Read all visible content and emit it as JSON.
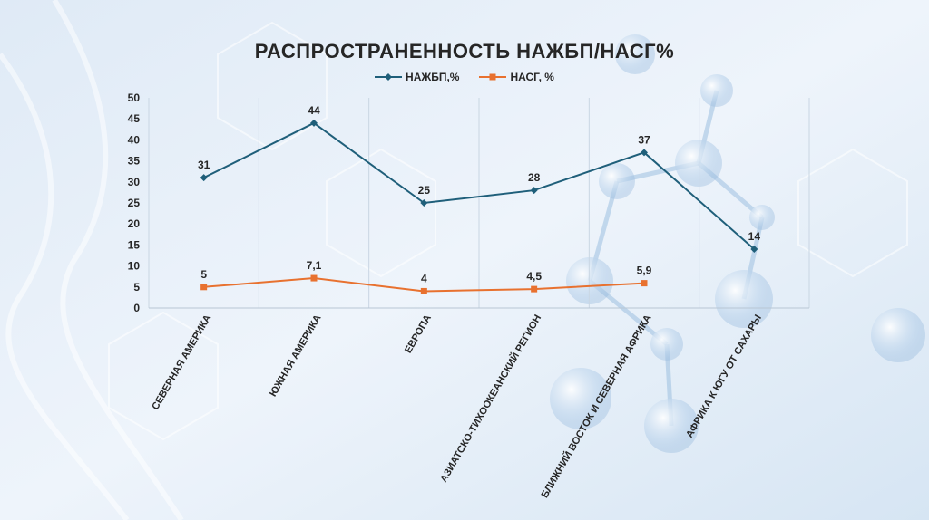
{
  "chart_data": {
    "type": "line",
    "title": "РАСПРОСТРАНЕННОСТЬ НАЖБП/НАСГ%",
    "categories": [
      "СЕВЕРНАЯ АМЕРИКА",
      "ЮЖНАЯ АМЕРИКА",
      "ЕВРОПА",
      "АЗИАТСКО-ТИХООКЕАНСКИЙ РЕГИОН",
      "БЛИЖНИЙ ВОСТОК И СЕВЕРНАЯ АФРИКА",
      "АФРИКА К ЮГУ ОТ САХАРЫ"
    ],
    "series": [
      {
        "name": "НАЖБП,%",
        "color": "#1f5f7a",
        "marker": "diamond",
        "values": [
          31,
          44,
          25,
          28,
          37,
          14
        ],
        "labels": [
          "31",
          "44",
          "25",
          "28",
          "37",
          "14"
        ]
      },
      {
        "name": "НАСГ, %",
        "color": "#e8712f",
        "marker": "square",
        "values": [
          5,
          7.1,
          4,
          4.5,
          5.9,
          null
        ],
        "labels": [
          "5",
          "7,1",
          "4",
          "4,5",
          "5,9",
          ""
        ]
      }
    ],
    "ylim": [
      0,
      50
    ],
    "yticks": [
      "0",
      "5",
      "10",
      "15",
      "20",
      "25",
      "30",
      "35",
      "40",
      "45",
      "50"
    ],
    "xlabel": "",
    "ylabel": "",
    "grid": "vertical",
    "legend": "top"
  }
}
